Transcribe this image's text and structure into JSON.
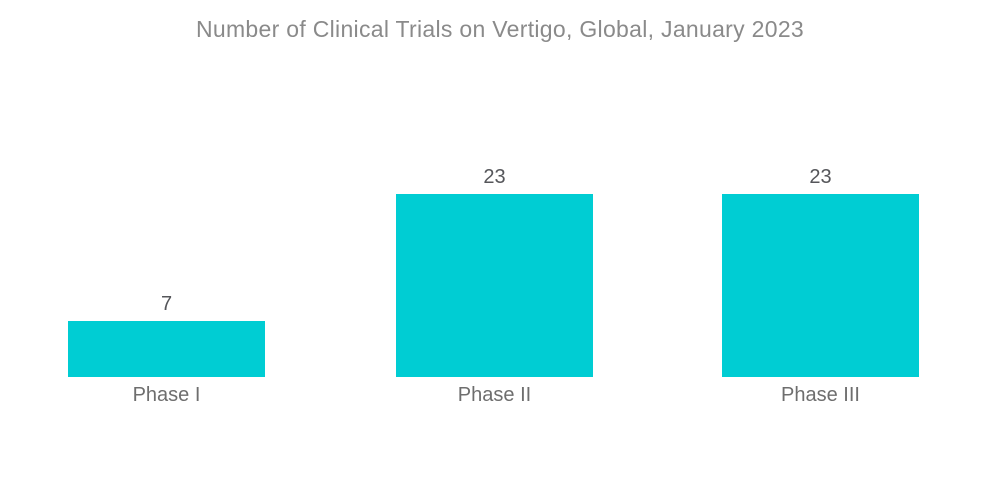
{
  "title": "Number of Clinical Trials on Vertigo, Global, January 2023",
  "chart_data": {
    "type": "bar",
    "title": "Number of Clinical Trials on Vertigo, Global, January 2023",
    "categories": [
      "Phase I",
      "Phase II",
      "Phase III"
    ],
    "values": [
      7,
      23,
      23
    ],
    "xlabel": "",
    "ylabel": "",
    "ylim": [
      0,
      23
    ],
    "grid": false,
    "legend": "none",
    "value_labels_shown": true,
    "bar_color": "#00cdd3"
  },
  "colors": {
    "bar": "#00cdd3",
    "title_text": "#8a8a8a",
    "value_text": "#55565a",
    "category_text": "#6e6e6e",
    "background": "#ffffff"
  }
}
